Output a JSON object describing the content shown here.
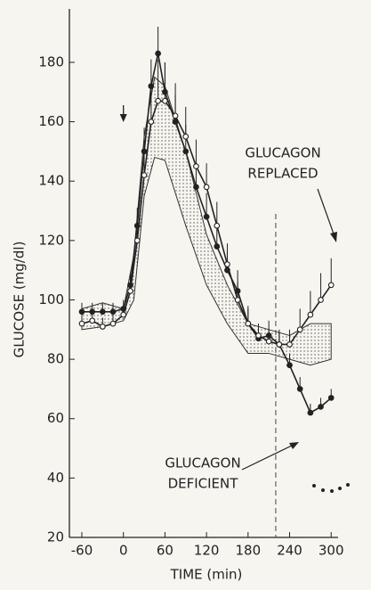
{
  "chart_data": {
    "type": "line",
    "xlabel": "TIME (min)",
    "ylabel": "GLUCOSE (mg/dl)",
    "xlim": [
      -78,
      310
    ],
    "ylim": [
      20,
      198
    ],
    "xticks": [
      -60,
      0,
      60,
      120,
      180,
      240,
      300
    ],
    "yticks": [
      20,
      40,
      60,
      80,
      100,
      120,
      140,
      160,
      180
    ],
    "vline": 220,
    "arrow_x": 0,
    "x": [
      -60,
      -45,
      -30,
      -15,
      0,
      10,
      20,
      30,
      40,
      50,
      60,
      75,
      90,
      105,
      120,
      135,
      150,
      165,
      180,
      195,
      210,
      225,
      240,
      255,
      270,
      285,
      300
    ],
    "series": [
      {
        "marker": "filled",
        "color": "#222222",
        "values": [
          96,
          96,
          96,
          96,
          97,
          105,
          125,
          150,
          172,
          183,
          170,
          160,
          150,
          138,
          128,
          118,
          110,
          103,
          92,
          87,
          88,
          85,
          78,
          70,
          62,
          64,
          67
        ],
        "errors": [
          3,
          3,
          3,
          3,
          3,
          4,
          6,
          8,
          9,
          9,
          10,
          9,
          9,
          8,
          8,
          8,
          7,
          7,
          6,
          5,
          5,
          5,
          4,
          4,
          3,
          3,
          3
        ]
      },
      {
        "marker": "open",
        "color": "#222222",
        "values": [
          92,
          93,
          91,
          92,
          95,
          103,
          120,
          142,
          160,
          167,
          167,
          162,
          155,
          145,
          138,
          125,
          112,
          100,
          92,
          88,
          86,
          85,
          85,
          90,
          95,
          100,
          105
        ],
        "errors": [
          3,
          3,
          3,
          3,
          3,
          4,
          6,
          9,
          12,
          14,
          13,
          11,
          10,
          9,
          8,
          8,
          7,
          6,
          5,
          4,
          4,
          4,
          5,
          7,
          8,
          9,
          9
        ]
      }
    ],
    "band": {
      "x": [
        -60,
        -30,
        0,
        15,
        30,
        45,
        60,
        90,
        120,
        150,
        180,
        210,
        240,
        270,
        300
      ],
      "upper": [
        97,
        99,
        97,
        115,
        155,
        175,
        172,
        150,
        122,
        105,
        92,
        90,
        88,
        92,
        92
      ],
      "lower": [
        90,
        91,
        93,
        100,
        135,
        148,
        147,
        125,
        105,
        92,
        82,
        82,
        80,
        78,
        80
      ]
    },
    "annotations": [
      [
        "GLUCAGON",
        "REPLACED"
      ],
      [
        "GLUCAGON",
        "DEFICIENT"
      ]
    ]
  }
}
